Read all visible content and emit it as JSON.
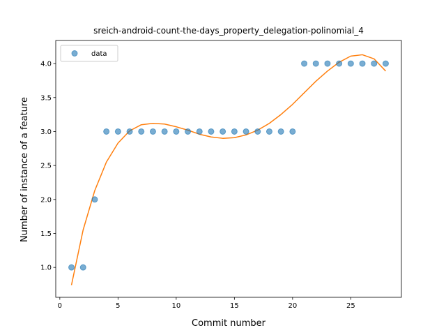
{
  "chart_data": {
    "type": "scatter",
    "title": "sreich-android-count-the-days_property_delegation-polinomial_4",
    "xlabel": "Commit number",
    "ylabel": "Number of instance of a feature",
    "xlim": [
      -0.35,
      29.35
    ],
    "ylim": [
      0.56,
      4.34
    ],
    "xticks": [
      0,
      5,
      10,
      15,
      20,
      25
    ],
    "yticks": [
      1.0,
      1.5,
      2.0,
      2.5,
      3.0,
      3.5,
      4.0
    ],
    "legend_position": "upper-left",
    "grid": false,
    "series": [
      {
        "name": "data",
        "kind": "scatter",
        "color": "#1f77b4",
        "x": [
          1,
          2,
          3,
          4,
          5,
          6,
          7,
          8,
          9,
          10,
          11,
          12,
          13,
          14,
          15,
          16,
          17,
          18,
          19,
          20,
          21,
          22,
          23,
          24,
          25,
          26,
          27,
          28
        ],
        "y": [
          1,
          1,
          2,
          3,
          3,
          3,
          3,
          3,
          3,
          3,
          3,
          3,
          3,
          3,
          3,
          3,
          3,
          3,
          3,
          3,
          4,
          4,
          4,
          4,
          4,
          4,
          4,
          4
        ]
      },
      {
        "kind": "line",
        "color": "#ff7f0e",
        "x": [
          1,
          2,
          3,
          4,
          5,
          6,
          7,
          8,
          9,
          10,
          11,
          12,
          13,
          14,
          15,
          16,
          17,
          18,
          19,
          20,
          21,
          22,
          23,
          24,
          25,
          26,
          27,
          28
        ],
        "y": [
          0.74,
          1.55,
          2.13,
          2.55,
          2.83,
          3.01,
          3.1,
          3.12,
          3.11,
          3.07,
          3.02,
          2.96,
          2.92,
          2.9,
          2.91,
          2.95,
          3.02,
          3.12,
          3.25,
          3.4,
          3.57,
          3.74,
          3.89,
          4.02,
          4.11,
          4.13,
          4.07,
          3.89
        ]
      }
    ]
  }
}
